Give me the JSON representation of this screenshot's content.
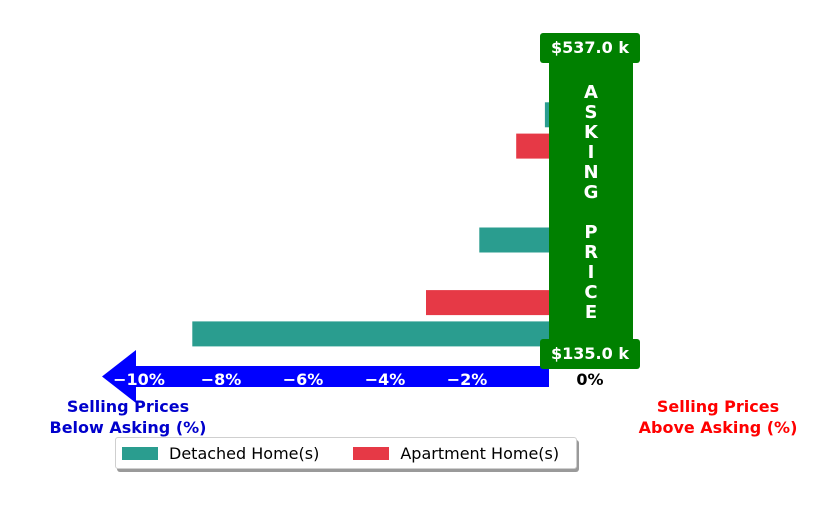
{
  "chart_data": {
    "type": "bar",
    "orientation": "horizontal",
    "series": [
      {
        "name": "Detached Home(s)",
        "color": "#2a9d8f"
      },
      {
        "name": "Apartment Home(s)",
        "color": "#e63946"
      }
    ],
    "bars": [
      {
        "series": "Detached Home(s)",
        "value": 0.3
      },
      {
        "series": "Detached Home(s)",
        "value": -0.1
      },
      {
        "series": "Apartment Home(s)",
        "value": -0.8
      },
      {
        "series": "Detached Home(s)",
        "value": 0.2
      },
      {
        "series": "Detached Home(s)",
        "value": 0.2
      },
      {
        "series": "Detached Home(s)",
        "value": -1.7
      },
      {
        "series": "Apartment Home(s)",
        "value": 0.2
      },
      {
        "series": "Apartment Home(s)",
        "value": -3.0
      },
      {
        "series": "Detached Home(s)",
        "value": -8.7
      }
    ],
    "xlim": [
      -10.8,
      1.0
    ],
    "xticks": [
      "−10%",
      "−8%",
      "−6%",
      "−4%",
      "−2%",
      "0%"
    ],
    "xtick_values": [
      -10,
      -8,
      -6,
      -4,
      -2,
      0
    ],
    "arrow_color": "#0000ff",
    "asking_band_color": "#008000",
    "legend_placement": "lower-left",
    "grid": false
  },
  "labels": {
    "below_asking": "Selling Prices\nBelow Asking (%)",
    "above_asking": "Selling Prices\nAbove Asking (%)",
    "below_color": "#0000cc",
    "above_color": "#ff0000",
    "asking_price": "ASKING PRICE",
    "top_price": "$537.0 k",
    "bottom_price": "$135.0 k"
  }
}
